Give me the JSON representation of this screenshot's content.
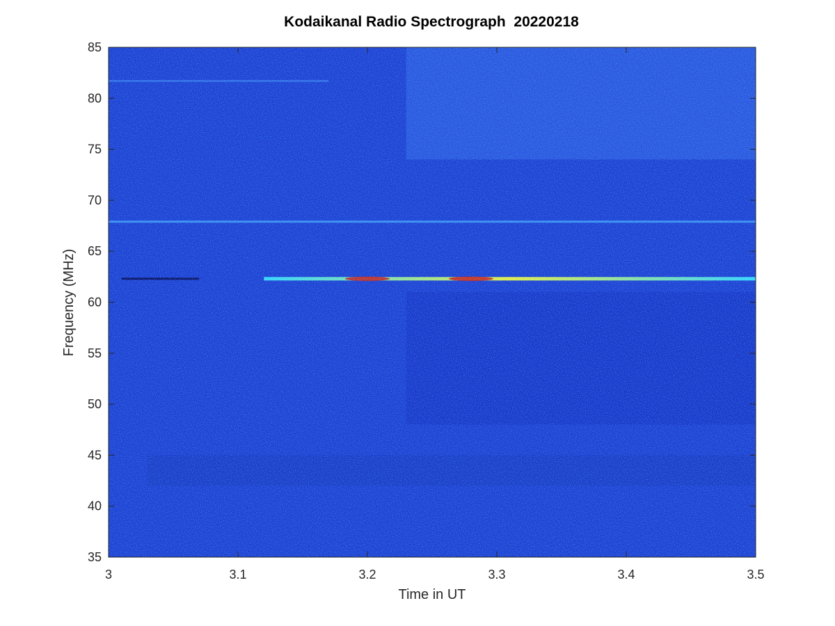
{
  "chart_data": {
    "type": "heatmap",
    "title": "Kodaikanal Radio Spectrograph  20220218",
    "xlabel": "Time in UT",
    "ylabel": "Frequency (MHz)",
    "xlim": [
      3,
      3.5
    ],
    "ylim": [
      35,
      85
    ],
    "xticks": [
      3,
      3.1,
      3.2,
      3.3,
      3.4,
      3.5
    ],
    "xtick_labels": [
      "3",
      "3.1",
      "3.2",
      "3.3",
      "3.4",
      "3.5"
    ],
    "yticks": [
      35,
      40,
      45,
      50,
      55,
      60,
      65,
      70,
      75,
      80,
      85
    ],
    "ytick_labels": [
      "35",
      "40",
      "45",
      "50",
      "55",
      "60",
      "65",
      "70",
      "75",
      "80",
      "85"
    ],
    "colormap": "jet",
    "background_color": "#1e3cd2",
    "grid": false,
    "legend": "none",
    "features": [
      {
        "name": "strong-emission-line",
        "frequency_mhz": 62.3,
        "time_range": [
          3.12,
          3.5
        ],
        "peak_times": [
          3.2,
          3.28
        ],
        "peak_color": "#d01010"
      },
      {
        "name": "emission-line",
        "frequency_mhz": 67.9,
        "time_range": [
          3.0,
          3.5
        ]
      },
      {
        "name": "faint-line",
        "frequency_mhz": 81.7,
        "time_range": [
          3.0,
          3.17
        ]
      },
      {
        "name": "dark-absorption-line",
        "frequency_mhz": 62.3,
        "time_range": [
          3.01,
          3.07
        ]
      },
      {
        "name": "darker-block",
        "time_range": [
          3.23,
          3.5
        ],
        "frequency_range": [
          48,
          61
        ]
      },
      {
        "name": "brighter-block",
        "time_range": [
          3.23,
          3.5
        ],
        "frequency_range": [
          74,
          85
        ]
      },
      {
        "name": "periodic-pattern",
        "time_range": [
          3.03,
          3.5
        ],
        "frequency_range": [
          42,
          45
        ]
      }
    ]
  }
}
